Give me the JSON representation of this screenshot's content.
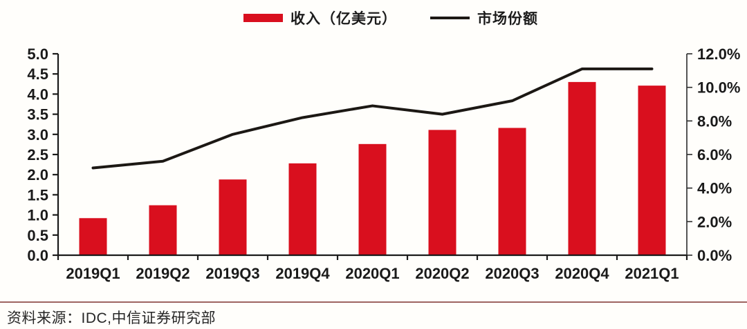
{
  "legend": {
    "items": [
      {
        "label": "收入（亿美元）",
        "marker": "bar-swatch-icon",
        "series_type": "bar",
        "color": "#d90f1e"
      },
      {
        "label": "市场份额",
        "marker": "line-swatch-icon",
        "series_type": "line",
        "color": "#1c1814"
      }
    ]
  },
  "footer": {
    "source_note": "资料来源：IDC,中信证券研究部",
    "divider_color": "#9d6360"
  },
  "chart_data": {
    "type": "bar",
    "title": "",
    "categories": [
      "2019Q1",
      "2019Q2",
      "2019Q3",
      "2019Q4",
      "2020Q1",
      "2020Q2",
      "2020Q3",
      "2020Q4",
      "2021Q1"
    ],
    "series": [
      {
        "name": "收入（亿美元）",
        "type": "bar",
        "axis": "left",
        "color": "#d90f1e",
        "values": [
          0.92,
          1.24,
          1.88,
          2.28,
          2.76,
          3.11,
          3.16,
          4.3,
          4.21
        ]
      },
      {
        "name": "市场份额",
        "type": "line",
        "axis": "right",
        "color": "#1c1814",
        "values": [
          5.2,
          5.6,
          7.2,
          8.2,
          8.9,
          8.4,
          9.2,
          11.1,
          11.1
        ]
      }
    ],
    "left_axis": {
      "min": 0,
      "max": 5,
      "step": 0.5,
      "tick_labels": [
        "0.0",
        "0.5",
        "1.0",
        "1.5",
        "2.0",
        "2.5",
        "3.0",
        "3.5",
        "4.0",
        "4.5",
        "5.0"
      ]
    },
    "right_axis": {
      "min": 0,
      "max": 12,
      "step": 2,
      "unit": "%",
      "tick_labels": [
        "0.0%",
        "2.0%",
        "4.0%",
        "6.0%",
        "8.0%",
        "10.0%",
        "12.0%"
      ]
    },
    "grid": false,
    "legend_position": "top"
  }
}
